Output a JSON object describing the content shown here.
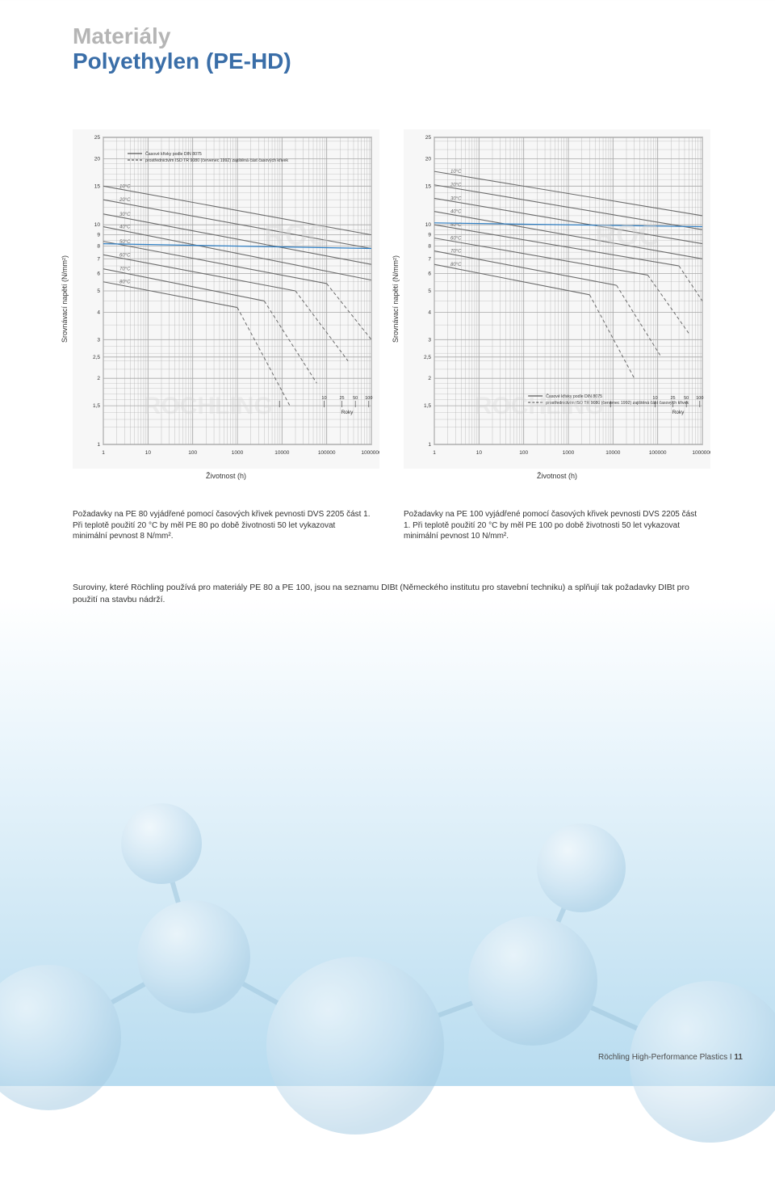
{
  "header": {
    "title1": "Materiály",
    "title2": "Polyethylen (PE-HD)"
  },
  "chart_left": {
    "type": "line",
    "ylabel": "Srovnávací napětí (N/mm²)",
    "xlabel": "Životnost (h)",
    "years_label": "Roky",
    "legend_l1": "Časové křivky podle DIN 8075",
    "legend_l2": "prostřednictvím ISO TR 9080 (červenec 1992) zajištěná část časových křivek",
    "background_color": "#f7f7f7",
    "grid_color": "#a8a8a8",
    "axis_color": "#333333",
    "dashed_color": "#6b6b6b",
    "blue_line_color": "#2f7fc4",
    "label_fontsize": 9,
    "tick_fontsize": 6.5,
    "x_ticks": [
      1,
      10,
      100,
      1000,
      10000,
      100000,
      1000000
    ],
    "x_tick_labels": [
      "1",
      "10",
      "100",
      "1000",
      "10000",
      "100000",
      "1000000"
    ],
    "y_ticks": [
      1,
      1.5,
      2,
      2.5,
      3,
      4,
      5,
      6,
      7,
      8,
      9,
      10,
      15,
      20,
      25
    ],
    "y_tick_labels": [
      "1",
      "1,5",
      "2",
      "2,5",
      "3",
      "4",
      "5",
      "6",
      "7",
      "8",
      "9",
      "10",
      "15",
      "20",
      "25"
    ],
    "years_ticks": [
      1,
      10,
      25,
      50,
      100
    ],
    "years_tick_labels": [
      "10",
      "25",
      "50",
      "100"
    ],
    "temp_labels": [
      "10°C",
      "20°C",
      "30°C",
      "40°C",
      "50°C",
      "60°C",
      "70°C",
      "80°C"
    ],
    "temp_label_color": "#666666",
    "curves": [
      {
        "temp": "10",
        "color": "#6b6b6b",
        "p0": [
          1,
          15.0
        ],
        "p1": [
          1000000,
          9.0
        ],
        "break": null
      },
      {
        "temp": "20",
        "color": "#6b6b6b",
        "p0": [
          1,
          13.0
        ],
        "p1": [
          1000000,
          7.8
        ],
        "break": null
      },
      {
        "temp": "30",
        "color": "#6b6b6b",
        "p0": [
          1,
          11.2
        ],
        "p1": [
          1000000,
          6.6
        ],
        "break": null
      },
      {
        "temp": "40",
        "color": "#6b6b6b",
        "p0": [
          1,
          9.8
        ],
        "p1": [
          1000000,
          5.6
        ],
        "break": null
      },
      {
        "temp": "50",
        "color": "#6b6b6b",
        "p0": [
          1,
          8.4
        ],
        "p1": [
          100000,
          5.4
        ],
        "break": [
          100000,
          5.4,
          1000000,
          3.0
        ]
      },
      {
        "temp": "60",
        "color": "#6b6b6b",
        "p0": [
          1,
          7.3
        ],
        "p1": [
          20000,
          5.0
        ],
        "break": [
          20000,
          5.0,
          300000,
          2.4
        ]
      },
      {
        "temp": "70",
        "color": "#6b6b6b",
        "p0": [
          1,
          6.3
        ],
        "p1": [
          4000,
          4.5
        ],
        "break": [
          4000,
          4.5,
          60000,
          1.9
        ]
      },
      {
        "temp": "80",
        "color": "#6b6b6b",
        "p0": [
          1,
          5.5
        ],
        "p1": [
          1000,
          4.2
        ],
        "break": [
          1000,
          4.2,
          15000,
          1.5
        ]
      }
    ],
    "blue_line": {
      "p0": [
        1,
        8.2
      ],
      "p1": [
        1000000,
        7.8
      ]
    }
  },
  "chart_right": {
    "type": "line",
    "ylabel": "Srovnávací napětí (N/mm²)",
    "xlabel": "Životnost (h)",
    "years_label": "Roky",
    "legend_l1": "Časové křivky podle DIN 8075",
    "legend_l2": "prostřednictvím ISO TR 9080 (červenec 1992) zajištěná část časových křivek",
    "background_color": "#f7f7f7",
    "grid_color": "#a8a8a8",
    "axis_color": "#333333",
    "dashed_color": "#6b6b6b",
    "blue_line_color": "#2f7fc4",
    "label_fontsize": 9,
    "tick_fontsize": 6.5,
    "x_ticks": [
      1,
      10,
      100,
      1000,
      10000,
      100000,
      1000000
    ],
    "x_tick_labels": [
      "1",
      "10",
      "100",
      "1000",
      "10000",
      "100000",
      "1000000"
    ],
    "y_ticks": [
      1,
      1.5,
      2,
      2.5,
      3,
      4,
      5,
      6,
      7,
      8,
      9,
      10,
      15,
      20,
      25
    ],
    "y_tick_labels": [
      "1",
      "1,5",
      "2",
      "2,5",
      "3",
      "4",
      "5",
      "6",
      "7",
      "8",
      "9",
      "10",
      "15",
      "20",
      "25"
    ],
    "years_ticks": [
      1,
      10,
      25,
      50,
      100
    ],
    "years_tick_labels": [
      "10",
      "25",
      "50",
      "100"
    ],
    "temp_labels": [
      "10°C",
      "20°C",
      "30°C",
      "40°C",
      "50°C",
      "60°C",
      "70°C",
      "80°C"
    ],
    "temp_label_color": "#666666",
    "curves": [
      {
        "temp": "10",
        "color": "#6b6b6b",
        "p0": [
          1,
          17.5
        ],
        "p1": [
          1000000,
          11.0
        ],
        "break": null
      },
      {
        "temp": "20",
        "color": "#6b6b6b",
        "p0": [
          1,
          15.2
        ],
        "p1": [
          1000000,
          9.5
        ],
        "break": null
      },
      {
        "temp": "30",
        "color": "#6b6b6b",
        "p0": [
          1,
          13.2
        ],
        "p1": [
          1000000,
          8.2
        ],
        "break": null
      },
      {
        "temp": "40",
        "color": "#6b6b6b",
        "p0": [
          1,
          11.5
        ],
        "p1": [
          1000000,
          7.0
        ],
        "break": null
      },
      {
        "temp": "50",
        "color": "#6b6b6b",
        "p0": [
          1,
          10.0
        ],
        "p1": [
          300000,
          6.5
        ],
        "break": [
          300000,
          6.5,
          1000000,
          4.5
        ]
      },
      {
        "temp": "60",
        "color": "#6b6b6b",
        "p0": [
          1,
          8.7
        ],
        "p1": [
          60000,
          5.9
        ],
        "break": [
          60000,
          5.9,
          500000,
          3.2
        ]
      },
      {
        "temp": "70",
        "color": "#6b6b6b",
        "p0": [
          1,
          7.6
        ],
        "p1": [
          12000,
          5.3
        ],
        "break": [
          12000,
          5.3,
          120000,
          2.5
        ]
      },
      {
        "temp": "80",
        "color": "#6b6b6b",
        "p0": [
          1,
          6.6
        ],
        "p1": [
          3000,
          4.8
        ],
        "break": [
          3000,
          4.8,
          30000,
          2.0
        ]
      }
    ],
    "blue_line": {
      "p0": [
        1,
        10.2
      ],
      "p1": [
        1000000,
        9.8
      ]
    }
  },
  "caption_left": "Požadavky na PE 80 vyjádřené pomocí časových křivek pevnosti DVS 2205 část 1. Při teplotě použití 20 °C by měl PE 80 po době životnosti 50 let vykazovat minimální pevnost 8 N/mm².",
  "caption_right": "Požadavky na PE 100 vyjádřené pomocí časových křivek pevnosti DVS 2205 část 1. Při teplotě použití 20 °C by měl PE 100 po době životnosti 50 let vykazovat minimální pevnost 10 N/mm².",
  "body": "Suroviny, které Röchling používá pro materiály PE 80 a PE 100, jsou na seznamu DIBt (Německého institutu pro stavební techniku) a splňují tak požadavky DIBt pro použití na stavbu nádrží.",
  "footer": {
    "text": "Röchling High-Performance Plastics I",
    "page": "11"
  },
  "decorative": {
    "sphere_fill": "#cfe4f2",
    "sphere_hi": "#ffffff",
    "bond_color": "#9fc6de"
  }
}
